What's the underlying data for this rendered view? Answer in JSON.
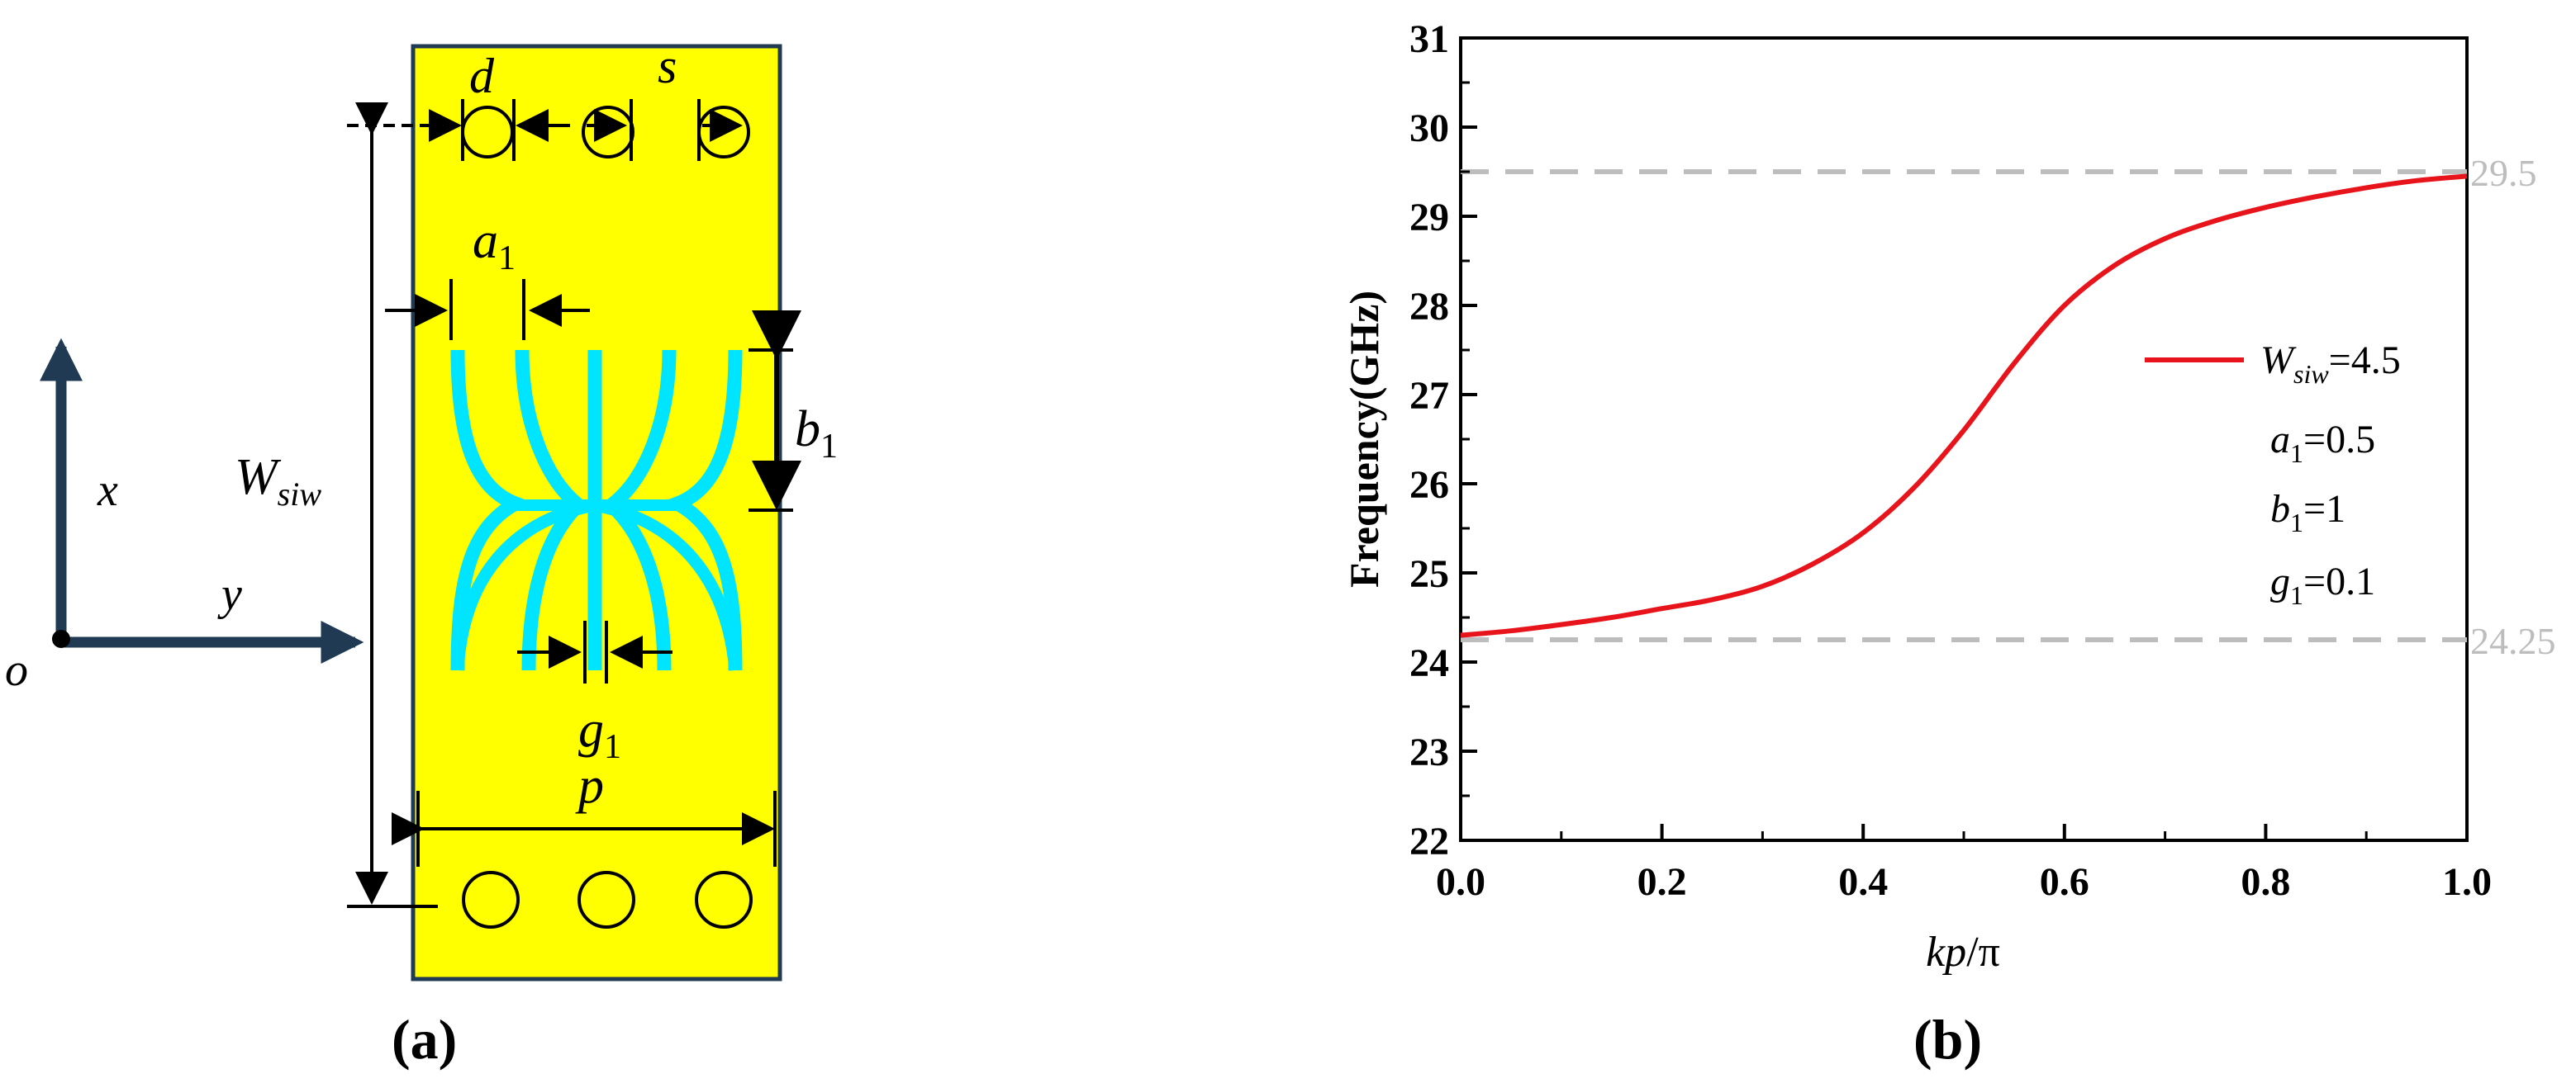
{
  "panel_a": {
    "caption": "(a)",
    "labels": {
      "d": "d",
      "s": "s",
      "a1": "a",
      "a1_sub": "1",
      "b1": "b",
      "b1_sub": "1",
      "wsiw": "W",
      "wsiw_sub": "siw",
      "g1": "g",
      "g1_sub": "1",
      "p": "p",
      "x": "x",
      "y": "y",
      "o": "o"
    },
    "colors": {
      "substrate": "#FFFF00",
      "slot": "#00E5FF",
      "axis": "#1F3A52",
      "outline": "#1F3A52"
    }
  },
  "panel_b": {
    "caption": "(b)",
    "chart_data": {
      "type": "line",
      "xlabel_italic": "kp",
      "xlabel_rest": "/π",
      "ylabel": "Frequency(GHz)",
      "xlim": [
        0.0,
        1.0
      ],
      "ylim": [
        22,
        31
      ],
      "xticks": [
        "0.0",
        "0.2",
        "0.4",
        "0.6",
        "0.8",
        "1.0"
      ],
      "yticks": [
        "22",
        "23",
        "24",
        "25",
        "26",
        "27",
        "28",
        "29",
        "30",
        "31"
      ],
      "series": [
        {
          "name": "W_siw=4.5",
          "color": "#E8141C",
          "x": [
            0.0,
            0.05,
            0.1,
            0.15,
            0.2,
            0.25,
            0.3,
            0.35,
            0.4,
            0.45,
            0.5,
            0.55,
            0.6,
            0.65,
            0.7,
            0.75,
            0.8,
            0.85,
            0.9,
            0.95,
            1.0
          ],
          "y": [
            24.3,
            24.35,
            24.42,
            24.5,
            24.6,
            24.7,
            24.85,
            25.1,
            25.45,
            25.95,
            26.6,
            27.35,
            28.0,
            28.45,
            28.75,
            28.95,
            29.1,
            29.22,
            29.32,
            29.4,
            29.45
          ]
        }
      ],
      "reference_lines": [
        {
          "value": 29.5,
          "label": "29.5"
        },
        {
          "value": 24.25,
          "label": "24.25"
        }
      ],
      "legend": {
        "line_label_main": "W",
        "line_label_sub": "siw",
        "line_label_value": "=4.5",
        "params": [
          {
            "main": "a",
            "sub": "1",
            "value": "=0.5"
          },
          {
            "main": "b",
            "sub": "1",
            "value": "=1"
          },
          {
            "main": "g",
            "sub": "1",
            "value": "=0.1"
          }
        ],
        "placement": "right"
      },
      "grid": false
    }
  }
}
